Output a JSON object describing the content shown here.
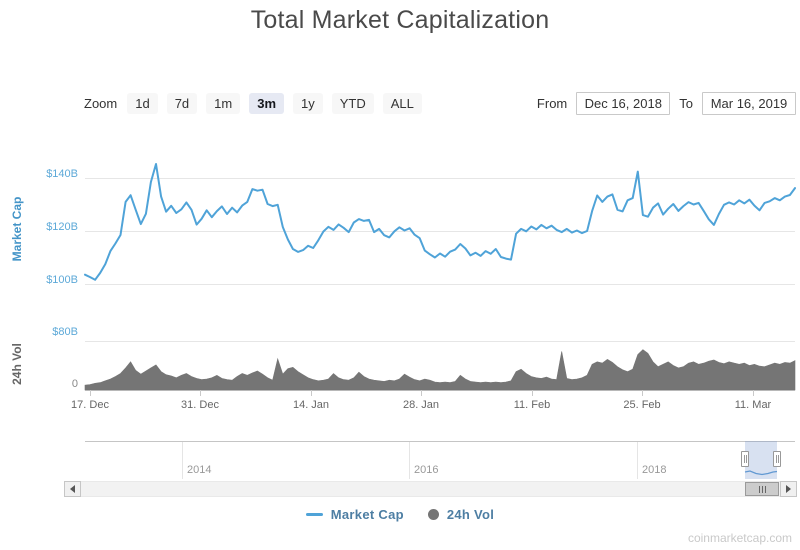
{
  "header": {
    "title": "Total Market Capitalization"
  },
  "toolbar": {
    "zoom_label": "Zoom",
    "zoom_buttons": [
      {
        "label": "1d",
        "selected": false
      },
      {
        "label": "7d",
        "selected": false
      },
      {
        "label": "1m",
        "selected": false
      },
      {
        "label": "3m",
        "selected": true
      },
      {
        "label": "1y",
        "selected": false
      },
      {
        "label": "YTD",
        "selected": false
      },
      {
        "label": "ALL",
        "selected": false
      }
    ],
    "from_label": "From",
    "from_value": "Dec 16, 2018",
    "to_label": "To",
    "to_value": "Mar 16, 2019"
  },
  "main_chart": {
    "axis_title": "Market Cap",
    "y_labels": [
      "$140B",
      "$120B",
      "$100B"
    ]
  },
  "volume_chart": {
    "axis_title": "24h Vol",
    "y_labels": [
      "$80B",
      "0"
    ]
  },
  "x_axis": {
    "labels": [
      "17. Dec",
      "31. Dec",
      "14. Jan",
      "28. Jan",
      "11. Feb",
      "25. Feb",
      "11. Mar"
    ]
  },
  "navigator": {
    "year_labels": [
      "2014",
      "2016",
      "2018"
    ]
  },
  "legend": {
    "items": [
      {
        "label": "Market Cap",
        "marker": "line",
        "color": "#4fa3d8"
      },
      {
        "label": "24h Vol",
        "marker": "circle",
        "color": "#757575"
      }
    ]
  },
  "watermark": {
    "text": "coinmarketcap.com"
  },
  "colors": {
    "market_cap_line": "#4fa3d8",
    "volume_fill": "#757575",
    "y_label_blue": "#5da9d8",
    "axis_title_blue": "#4595c8",
    "gray_text": "#666666",
    "navigator_window": "rgba(116,149,206,0.28)",
    "legend_text": "#4d7ea3",
    "title_text": "#4a4a4a"
  },
  "chart_data": {
    "type": "line",
    "title": "Total Market Capitalization",
    "x_range": [
      "Dec 16, 2018",
      "Mar 16, 2019"
    ],
    "x_tick_labels": [
      "17. Dec",
      "31. Dec",
      "14. Jan",
      "28. Jan",
      "11. Feb",
      "25. Feb",
      "11. Mar"
    ],
    "sample_interval_days": 0.643,
    "grid": true,
    "legend_position": "bottom",
    "series": [
      {
        "name": "Market Cap",
        "type": "line",
        "unit": "USD billions",
        "color": "#4fa3d8",
        "ylim": [
          90,
          151
        ],
        "y_ticks": [
          "$100B",
          "$120B",
          "$140B"
        ],
        "values": [
          103.5,
          102.6,
          101.6,
          104.2,
          107.5,
          112.4,
          115.3,
          118.5,
          131.0,
          133.5,
          128.0,
          122.6,
          126.5,
          138.5,
          145.3,
          133.0,
          127.3,
          129.5,
          126.8,
          128.2,
          130.8,
          128.0,
          122.4,
          124.6,
          127.8,
          125.2,
          127.5,
          129.3,
          126.4,
          128.8,
          127.0,
          129.6,
          131.0,
          135.8,
          135.2,
          135.6,
          130.2,
          129.4,
          129.9,
          121.5,
          116.8,
          113.2,
          112.1,
          112.8,
          114.4,
          113.6,
          116.5,
          119.8,
          121.6,
          120.4,
          122.5,
          121.2,
          119.6,
          123.2,
          124.5,
          123.8,
          124.2,
          119.6,
          120.8,
          118.4,
          117.6,
          119.9,
          121.4,
          120.2,
          121.0,
          118.6,
          117.3,
          112.6,
          111.2,
          110.0,
          111.5,
          110.3,
          112.2,
          113.0,
          115.1,
          113.4,
          110.8,
          111.8,
          110.6,
          112.4,
          111.4,
          113.2,
          110.2,
          109.6,
          109.2,
          119.0,
          120.8,
          119.9,
          121.7,
          120.6,
          122.3,
          121.0,
          122.0,
          120.4,
          119.6,
          120.8,
          119.4,
          120.2,
          119.2,
          120.0,
          127.5,
          133.4,
          131.0,
          133.0,
          133.8,
          128.0,
          127.4,
          131.6,
          132.4,
          142.4,
          126.0,
          125.4,
          128.8,
          130.4,
          126.2,
          128.4,
          130.2,
          127.6,
          129.4,
          130.9,
          130.0,
          130.6,
          127.6,
          124.4,
          122.3,
          126.4,
          129.9,
          130.8,
          130.0,
          131.6,
          130.4,
          131.8,
          129.6,
          127.8,
          130.6,
          131.2,
          132.4,
          131.6,
          133.0,
          133.6,
          136.2
        ]
      },
      {
        "name": "24h Vol",
        "type": "area",
        "unit": "USD billions",
        "color": "#757575",
        "ylim": [
          0,
          80
        ],
        "y_ticks": [
          "0",
          "$80B"
        ],
        "values": [
          8,
          9,
          11,
          12,
          15,
          18,
          22,
          27,
          36,
          46,
          32,
          26,
          31,
          36,
          41,
          30,
          25,
          23,
          20,
          24,
          27,
          22,
          19,
          17,
          18,
          20,
          24,
          19,
          17,
          16,
          22,
          27,
          24,
          28,
          31,
          26,
          20,
          16,
          51,
          26,
          35,
          37,
          30,
          25,
          20,
          17,
          15,
          16,
          18,
          27,
          20,
          17,
          16,
          20,
          29,
          22,
          18,
          16,
          15,
          14,
          16,
          15,
          18,
          26,
          21,
          17,
          15,
          18,
          16,
          13,
          12,
          13,
          12,
          14,
          24,
          18,
          14,
          13,
          12,
          13,
          12,
          13,
          12,
          13,
          15,
          30,
          34,
          27,
          22,
          20,
          19,
          21,
          18,
          17,
          63,
          19,
          17,
          18,
          20,
          24,
          42,
          46,
          44,
          50,
          45,
          38,
          33,
          30,
          34,
          58,
          66,
          60,
          46,
          38,
          42,
          46,
          40,
          36,
          38,
          44,
          46,
          42,
          44,
          47,
          49,
          45,
          43,
          46,
          44,
          42,
          44,
          40,
          42,
          39,
          38,
          41,
          44,
          42,
          45,
          44,
          48
        ]
      }
    ],
    "navigator_window_series": [
      [
        745,
        472
      ],
      [
        750,
        471
      ],
      [
        756,
        473.5
      ],
      [
        762,
        474.5
      ],
      [
        768,
        473.5
      ],
      [
        773,
        472
      ],
      [
        777,
        471.5
      ]
    ]
  }
}
